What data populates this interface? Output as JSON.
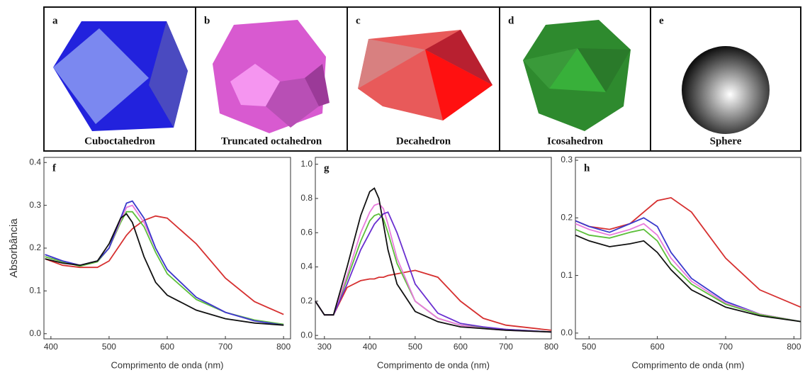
{
  "panels": [
    {
      "letter": "a",
      "label": "Cuboctahedron"
    },
    {
      "letter": "b",
      "label": "Truncated octahedron"
    },
    {
      "letter": "c",
      "label": "Decahedron"
    },
    {
      "letter": "d",
      "label": "Icosahedron"
    },
    {
      "letter": "e",
      "label": "Sphere"
    }
  ],
  "chart_data": [
    {
      "type": "line",
      "panel_label": "f",
      "x_label": "Comprimento de onda (nm)",
      "y_label": "Absorbância",
      "x": [
        390,
        420,
        450,
        480,
        500,
        520,
        530,
        540,
        560,
        580,
        600,
        650,
        700,
        750,
        800
      ],
      "series": [
        {
          "color": "#d63030",
          "values": [
            0.175,
            0.16,
            0.155,
            0.155,
            0.17,
            0.21,
            0.23,
            0.245,
            0.265,
            0.275,
            0.27,
            0.21,
            0.13,
            0.075,
            0.045
          ]
        },
        {
          "color": "#5cbf3a",
          "values": [
            0.18,
            0.168,
            0.158,
            0.168,
            0.2,
            0.26,
            0.285,
            0.285,
            0.25,
            0.19,
            0.14,
            0.08,
            0.05,
            0.032,
            0.022
          ]
        },
        {
          "color": "#e87adc",
          "values": [
            0.185,
            0.17,
            0.16,
            0.17,
            0.2,
            0.265,
            0.295,
            0.3,
            0.26,
            0.2,
            0.15,
            0.085,
            0.05,
            0.03,
            0.02
          ]
        },
        {
          "color": "#3a3acc",
          "values": [
            0.185,
            0.17,
            0.16,
            0.17,
            0.2,
            0.27,
            0.305,
            0.31,
            0.27,
            0.2,
            0.15,
            0.085,
            0.05,
            0.03,
            0.02
          ]
        },
        {
          "color": "#111111",
          "values": [
            0.175,
            0.165,
            0.16,
            0.17,
            0.21,
            0.27,
            0.28,
            0.26,
            0.18,
            0.12,
            0.09,
            0.055,
            0.035,
            0.025,
            0.02
          ]
        }
      ],
      "xlim": [
        388,
        812
      ],
      "ylim": [
        -0.012,
        0.412
      ],
      "xticks": [
        400,
        500,
        600,
        700,
        800
      ],
      "yticks": [
        {
          "value": 0,
          "label": "0.0"
        },
        0.1,
        0.2,
        0.3,
        0.4
      ]
    },
    {
      "type": "line",
      "panel_label": "g",
      "x_label": "Comprimento de onda (nm)",
      "x": [
        280,
        300,
        320,
        350,
        380,
        400,
        410,
        420,
        430,
        440,
        460,
        500,
        550,
        600,
        650,
        700,
        800
      ],
      "series": [
        {
          "color": "#d63030",
          "values": [
            0.2,
            0.12,
            0.12,
            0.28,
            0.32,
            0.33,
            0.33,
            0.34,
            0.34,
            0.35,
            0.36,
            0.38,
            0.34,
            0.2,
            0.1,
            0.06,
            0.03
          ]
        },
        {
          "color": "#5cbf3a",
          "values": [
            0.2,
            0.12,
            0.12,
            0.33,
            0.55,
            0.67,
            0.7,
            0.71,
            0.68,
            0.6,
            0.42,
            0.2,
            0.1,
            0.06,
            0.045,
            0.035,
            0.02
          ]
        },
        {
          "color": "#e87adc",
          "values": [
            0.2,
            0.12,
            0.12,
            0.35,
            0.6,
            0.72,
            0.76,
            0.77,
            0.74,
            0.65,
            0.45,
            0.2,
            0.1,
            0.06,
            0.04,
            0.03,
            0.02
          ]
        },
        {
          "color": "#6a2fd0",
          "values": [
            0.2,
            0.12,
            0.12,
            0.3,
            0.5,
            0.6,
            0.65,
            0.68,
            0.71,
            0.72,
            0.6,
            0.3,
            0.13,
            0.07,
            0.05,
            0.035,
            0.02
          ]
        },
        {
          "color": "#111111",
          "values": [
            0.2,
            0.12,
            0.12,
            0.4,
            0.7,
            0.84,
            0.86,
            0.8,
            0.65,
            0.5,
            0.3,
            0.14,
            0.08,
            0.05,
            0.04,
            0.03,
            0.02
          ]
        }
      ],
      "xlim": [
        280,
        800
      ],
      "ylim": [
        -0.02,
        1.04
      ],
      "xticks": [
        300,
        400,
        500,
        600,
        700,
        800
      ],
      "yticks": [
        {
          "value": 0,
          "label": "0.0"
        },
        0.2,
        0.4,
        0.6,
        0.8,
        {
          "value": 1,
          "label": "1.0"
        }
      ]
    },
    {
      "type": "line",
      "panel_label": "h",
      "x_label": "Comprimento de onda (nm)",
      "x": [
        480,
        500,
        530,
        560,
        580,
        600,
        620,
        650,
        700,
        750,
        810
      ],
      "series": [
        {
          "color": "#d63030",
          "values": [
            0.195,
            0.185,
            0.18,
            0.19,
            0.21,
            0.23,
            0.235,
            0.21,
            0.13,
            0.075,
            0.045
          ]
        },
        {
          "color": "#3a3acc",
          "values": [
            0.195,
            0.185,
            0.175,
            0.19,
            0.2,
            0.185,
            0.14,
            0.095,
            0.055,
            0.033,
            0.02
          ]
        },
        {
          "color": "#e87adc",
          "values": [
            0.19,
            0.18,
            0.17,
            0.18,
            0.19,
            0.17,
            0.13,
            0.09,
            0.052,
            0.033,
            0.02
          ]
        },
        {
          "color": "#5cbf3a",
          "values": [
            0.18,
            0.17,
            0.165,
            0.175,
            0.18,
            0.16,
            0.12,
            0.085,
            0.05,
            0.032,
            0.02
          ]
        },
        {
          "color": "#111111",
          "values": [
            0.17,
            0.16,
            0.15,
            0.155,
            0.16,
            0.14,
            0.11,
            0.075,
            0.045,
            0.03,
            0.02
          ]
        }
      ],
      "xlim": [
        480,
        810
      ],
      "ylim": [
        -0.01,
        0.305
      ],
      "xticks": [
        500,
        600,
        700,
        800
      ],
      "yticks": [
        {
          "value": 0,
          "label": "0.0"
        },
        0.1,
        0.2,
        0.3
      ]
    }
  ]
}
